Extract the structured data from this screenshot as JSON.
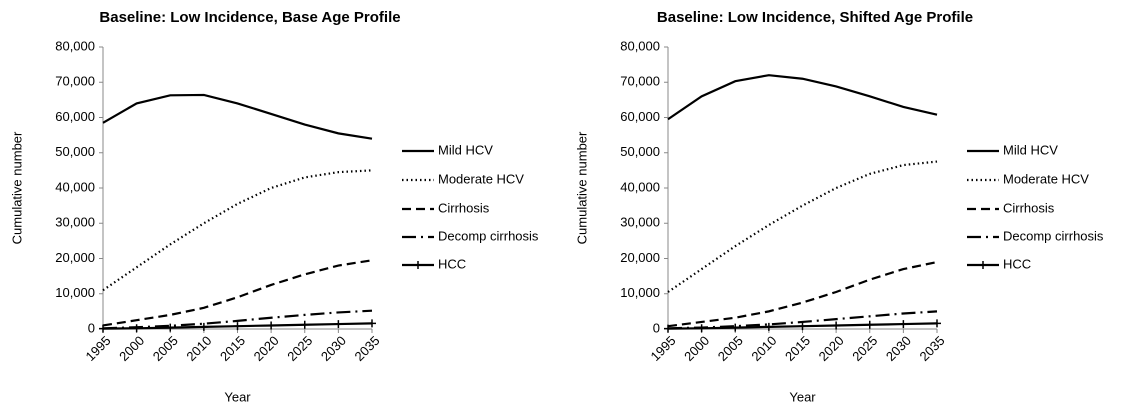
{
  "charts": [
    {
      "chart_data": {
        "type": "line",
        "title": "Baseline: Low Incidence, Base Age Profile",
        "xlabel": "Year",
        "ylabel": "Cumulative number",
        "x": [
          1995,
          2000,
          2005,
          2010,
          2015,
          2020,
          2025,
          2030,
          2035
        ],
        "xlim": [
          1995,
          2035
        ],
        "xticks": [
          1995,
          2000,
          2005,
          2010,
          2015,
          2020,
          2025,
          2030,
          2035
        ],
        "ylim": [
          0,
          80000
        ],
        "yticks": [
          0,
          {
            "value": 10000,
            "label": "10,000"
          },
          {
            "value": 20000,
            "label": "20,000"
          },
          {
            "value": 30000,
            "label": "30,000"
          },
          {
            "value": 40000,
            "label": "40,000"
          },
          {
            "value": 50000,
            "label": "50,000"
          },
          {
            "value": 60000,
            "label": "60,000"
          },
          {
            "value": 70000,
            "label": "70,000"
          },
          {
            "value": 80000,
            "label": "80,000"
          }
        ],
        "legend": "right",
        "series": [
          {
            "name": "Mild HCV",
            "color": "#000000",
            "style": "solid",
            "values": [
              58500,
              64000,
              66300,
              66400,
              64000,
              61000,
              58000,
              55500,
              54000
            ]
          },
          {
            "name": "Moderate HCV",
            "color": "#000000",
            "style": "dotted",
            "values": [
              11000,
              17500,
              24000,
              30000,
              35500,
              40000,
              43000,
              44500,
              45000
            ]
          },
          {
            "name": "Cirrhosis",
            "color": "#000000",
            "style": "dashed",
            "values": [
              1000,
              2500,
              4000,
              6000,
              9000,
              12500,
              15500,
              18000,
              19500
            ]
          },
          {
            "name": "Decomp cirrhosis",
            "color": "#000000",
            "style": "dashdot",
            "values": [
              200,
              500,
              900,
              1500,
              2300,
              3200,
              4000,
              4700,
              5200
            ]
          },
          {
            "name": "HCC",
            "color": "#000000",
            "style": "plus",
            "values": [
              100,
              200,
              400,
              600,
              800,
              1000,
              1200,
              1400,
              1600
            ]
          }
        ]
      }
    },
    {
      "chart_data": {
        "type": "line",
        "title": "Baseline: Low Incidence, Shifted Age Profile",
        "xlabel": "Year",
        "ylabel": "Cumulative number",
        "x": [
          1995,
          2000,
          2005,
          2010,
          2015,
          2020,
          2025,
          2030,
          2035
        ],
        "xlim": [
          1995,
          2035
        ],
        "xticks": [
          1995,
          2000,
          2005,
          2010,
          2015,
          2020,
          2025,
          2030,
          2035
        ],
        "ylim": [
          0,
          80000
        ],
        "yticks": [
          0,
          {
            "value": 10000,
            "label": "10,000"
          },
          {
            "value": 20000,
            "label": "20,000"
          },
          {
            "value": 30000,
            "label": "30,000"
          },
          {
            "value": 40000,
            "label": "40,000"
          },
          {
            "value": 50000,
            "label": "50,000"
          },
          {
            "value": 60000,
            "label": "60,000"
          },
          {
            "value": 70000,
            "label": "70,000"
          },
          {
            "value": 80000,
            "label": "80,000"
          }
        ],
        "legend": "right",
        "series": [
          {
            "name": "Mild HCV",
            "color": "#000000",
            "style": "solid",
            "values": [
              59500,
              66000,
              70300,
              72000,
              71000,
              68800,
              66000,
              63000,
              60800
            ]
          },
          {
            "name": "Moderate HCV",
            "color": "#000000",
            "style": "dotted",
            "values": [
              10500,
              17000,
              23500,
              29500,
              35000,
              40000,
              44000,
              46500,
              47500
            ]
          },
          {
            "name": "Cirrhosis",
            "color": "#000000",
            "style": "dashed",
            "values": [
              800,
              2000,
              3200,
              5000,
              7500,
              10500,
              14000,
              17000,
              19000
            ]
          },
          {
            "name": "Decomp cirrhosis",
            "color": "#000000",
            "style": "dashdot",
            "values": [
              200,
              400,
              800,
              1300,
              2000,
              2800,
              3600,
              4400,
              5000
            ]
          },
          {
            "name": "HCC",
            "color": "#000000",
            "style": "plus",
            "values": [
              100,
              200,
              400,
              600,
              800,
              1000,
              1200,
              1400,
              1600
            ]
          }
        ]
      }
    }
  ]
}
